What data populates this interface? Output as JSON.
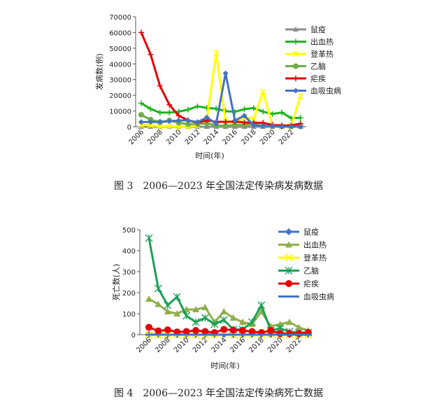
{
  "captions": {
    "fig3": "图 3　2006—2023 年全国法定传染病发病数据",
    "fig4": "图 4　2006—2023 年全国法定传染病死亡数据"
  },
  "chart_data": [
    {
      "type": "line",
      "title": "",
      "xlabel": "时间(年)",
      "ylabel": "发病数(例)",
      "ylim": [
        0,
        70000
      ],
      "yticks": [
        0,
        10000,
        20000,
        30000,
        40000,
        50000,
        60000,
        70000
      ],
      "x": [
        2006,
        2007,
        2008,
        2009,
        2010,
        2011,
        2012,
        2013,
        2014,
        2015,
        2016,
        2017,
        2018,
        2019,
        2020,
        2021,
        2022,
        2023
      ],
      "xtick_labels": [
        "2006",
        "2008",
        "2010",
        "2012",
        "2014",
        "2016",
        "2018",
        "2020",
        "2022"
      ],
      "legend_position": "right",
      "series": [
        {
          "name": "鼠疫",
          "color": "#8c8c8c",
          "marker": "triangle",
          "values": [
            2,
            2,
            2,
            2,
            2,
            2,
            2,
            2,
            2,
            1,
            2,
            1,
            1,
            5,
            4,
            1,
            2,
            5
          ]
        },
        {
          "name": "出血热",
          "color": "#1db41d",
          "marker": "plus",
          "values": [
            15000,
            11300,
            9000,
            9000,
            9600,
            10900,
            13000,
            12000,
            11500,
            10000,
            9500,
            11200,
            11900,
            9600,
            8100,
            9100,
            5500,
            5700
          ]
        },
        {
          "name": "登革热",
          "color": "#ffff00",
          "marker": "asterisk",
          "values": [
            1000,
            1000,
            200,
            300,
            200,
            120,
            600,
            4700,
            46900,
            3900,
            2100,
            5900,
            5100,
            22200,
            800,
            20,
            500,
            19500
          ]
        },
        {
          "name": "乙脑",
          "color": "#70ad47",
          "marker": "circle",
          "values": [
            7600,
            4500,
            3000,
            4000,
            2500,
            1600,
            1800,
            2200,
            900,
            600,
            1200,
            1100,
            1800,
            400,
            300,
            200,
            200,
            300
          ]
        },
        {
          "name": "疟疾",
          "color": "#e60000",
          "marker": "plus",
          "values": [
            60000,
            46000,
            26000,
            14000,
            7000,
            4100,
            2600,
            4100,
            3100,
            3100,
            3300,
            2700,
            2600,
            2500,
            1100,
            800,
            800,
            2000
          ]
        },
        {
          "name": "血吸虫病",
          "color": "#4472c4",
          "marker": "diamond",
          "values": [
            3000,
            3000,
            3000,
            3500,
            4000,
            4000,
            3000,
            5900,
            2000,
            34000,
            4000,
            7000,
            1000,
            500,
            500,
            0,
            30,
            60
          ]
        }
      ]
    },
    {
      "type": "line",
      "title": "",
      "xlabel": "时间(年)",
      "ylabel": "死亡数(人)",
      "ylim": [
        0,
        500
      ],
      "yticks": [
        0,
        100,
        200,
        300,
        400,
        500
      ],
      "x": [
        2006,
        2007,
        2008,
        2009,
        2010,
        2011,
        2012,
        2013,
        2014,
        2015,
        2016,
        2017,
        2018,
        2019,
        2020,
        2021,
        2022,
        2023
      ],
      "xtick_labels": [
        "2006",
        "2008",
        "2010",
        "2012",
        "2014",
        "2016",
        "2018",
        "2020",
        "2022"
      ],
      "legend_position": "right",
      "series": [
        {
          "name": "鼠疫",
          "color": "#4472c4",
          "marker": "diamond",
          "values": [
            1,
            1,
            0,
            0,
            1,
            0,
            1,
            1,
            1,
            0,
            0,
            1,
            0,
            1,
            1,
            0,
            0,
            1
          ]
        },
        {
          "name": "出血热",
          "color": "#8faf4a",
          "marker": "triangle",
          "values": [
            170,
            145,
            110,
            100,
            120,
            120,
            130,
            60,
            110,
            80,
            60,
            50,
            110,
            40,
            50,
            60,
            35,
            20
          ]
        },
        {
          "name": "登革热",
          "color": "#ffff00",
          "marker": "x",
          "values": [
            0,
            0,
            0,
            0,
            0,
            0,
            0,
            0,
            6,
            0,
            2,
            1,
            1,
            3,
            0,
            0,
            0,
            0
          ]
        },
        {
          "name": "乙脑",
          "color": "#1aa055",
          "marker": "asterisk",
          "values": [
            460,
            220,
            140,
            180,
            90,
            60,
            80,
            50,
            70,
            25,
            25,
            60,
            140,
            20,
            30,
            15,
            10,
            10
          ]
        },
        {
          "name": "疟疾",
          "color": "#e60000",
          "marker": "circle",
          "values": [
            35,
            18,
            23,
            13,
            15,
            20,
            15,
            10,
            25,
            22,
            20,
            15,
            10,
            20,
            5,
            5,
            5,
            10
          ]
        },
        {
          "name": "血吸虫病",
          "color": "#4472c4",
          "marker": "dash",
          "values": [
            0,
            0,
            0,
            0,
            0,
            0,
            0,
            0,
            0,
            0,
            0,
            0,
            0,
            0,
            0,
            0,
            0,
            0
          ]
        }
      ]
    }
  ]
}
